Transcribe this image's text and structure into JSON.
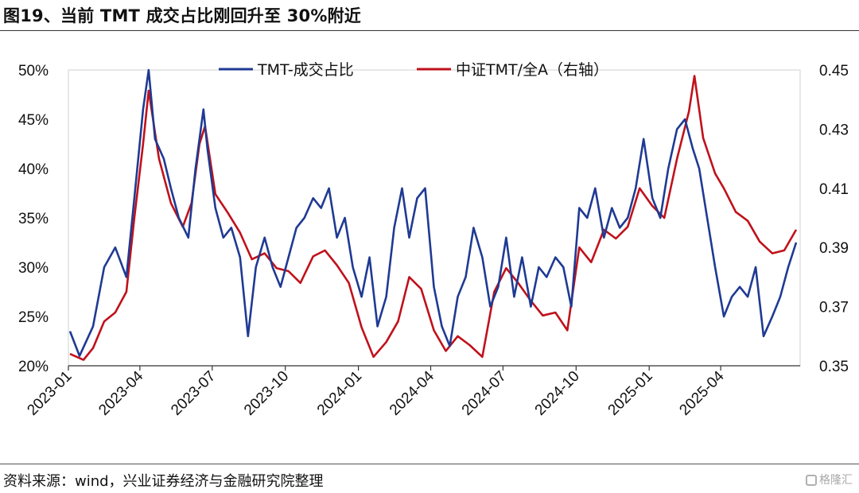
{
  "title": "图19、当前 TMT 成交占比刚回升至 30%附近",
  "source": "资料来源：wind，兴业证券经济与金融研究院整理",
  "watermark": "格隆汇",
  "colors": {
    "tmt_share": "#1f3a93",
    "tmt_ratio": "#c0111b"
  },
  "chart_data": {
    "type": "line",
    "x_ticks": [
      "2023-01",
      "2023-04",
      "2023-07",
      "2023-10",
      "2024-01",
      "2024-04",
      "2024-07",
      "2024-10",
      "2025-01",
      "2025-04"
    ],
    "x_range": [
      "2023-01-01",
      "2025-07-10"
    ],
    "y_left": {
      "ticks": [
        "50%",
        "45%",
        "40%",
        "35%",
        "30%",
        "25%",
        "20%"
      ],
      "range": [
        20,
        50
      ]
    },
    "y_right": {
      "ticks": [
        "0.45",
        "0.43",
        "0.41",
        "0.39",
        "0.37",
        "0.35"
      ],
      "range": [
        0.35,
        0.45
      ]
    },
    "grid": false,
    "legend_placement": "top-center",
    "series": [
      {
        "name": "TMT-成交占比",
        "axis": "left",
        "points": [
          [
            "2023-01-03",
            23.5
          ],
          [
            "2023-01-15",
            21
          ],
          [
            "2023-02-01",
            24
          ],
          [
            "2023-02-15",
            30
          ],
          [
            "2023-03-01",
            32
          ],
          [
            "2023-03-15",
            29
          ],
          [
            "2023-03-25",
            37
          ],
          [
            "2023-04-05",
            46
          ],
          [
            "2023-04-12",
            50
          ],
          [
            "2023-04-20",
            43
          ],
          [
            "2023-05-01",
            41
          ],
          [
            "2023-05-10",
            38
          ],
          [
            "2023-05-20",
            35
          ],
          [
            "2023-06-01",
            33
          ],
          [
            "2023-06-10",
            40
          ],
          [
            "2023-06-20",
            46
          ],
          [
            "2023-06-25",
            42
          ],
          [
            "2023-07-05",
            36
          ],
          [
            "2023-07-15",
            33
          ],
          [
            "2023-07-25",
            34
          ],
          [
            "2023-08-05",
            31
          ],
          [
            "2023-08-15",
            23
          ],
          [
            "2023-08-25",
            30
          ],
          [
            "2023-09-05",
            33
          ],
          [
            "2023-09-15",
            30
          ],
          [
            "2023-09-25",
            28
          ],
          [
            "2023-10-05",
            31
          ],
          [
            "2023-10-15",
            34
          ],
          [
            "2023-10-25",
            35
          ],
          [
            "2023-11-05",
            37
          ],
          [
            "2023-11-15",
            36
          ],
          [
            "2023-11-25",
            38
          ],
          [
            "2023-12-05",
            33
          ],
          [
            "2023-12-15",
            35
          ],
          [
            "2023-12-25",
            30
          ],
          [
            "2024-01-05",
            27
          ],
          [
            "2024-01-15",
            31
          ],
          [
            "2024-01-25",
            24
          ],
          [
            "2024-02-05",
            27
          ],
          [
            "2024-02-15",
            34
          ],
          [
            "2024-02-25",
            38
          ],
          [
            "2024-03-05",
            33
          ],
          [
            "2024-03-15",
            37
          ],
          [
            "2024-03-25",
            38
          ],
          [
            "2024-04-05",
            28
          ],
          [
            "2024-04-15",
            24
          ],
          [
            "2024-04-25",
            22
          ],
          [
            "2024-05-05",
            27
          ],
          [
            "2024-05-15",
            29
          ],
          [
            "2024-05-25",
            34
          ],
          [
            "2024-06-05",
            31
          ],
          [
            "2024-06-15",
            26
          ],
          [
            "2024-06-25",
            28
          ],
          [
            "2024-07-05",
            33
          ],
          [
            "2024-07-15",
            27
          ],
          [
            "2024-07-25",
            31
          ],
          [
            "2024-08-05",
            26
          ],
          [
            "2024-08-15",
            30
          ],
          [
            "2024-08-25",
            29
          ],
          [
            "2024-09-05",
            31
          ],
          [
            "2024-09-15",
            30
          ],
          [
            "2024-09-25",
            26
          ],
          [
            "2024-10-05",
            36
          ],
          [
            "2024-10-15",
            35
          ],
          [
            "2024-10-25",
            38
          ],
          [
            "2024-11-05",
            33
          ],
          [
            "2024-11-15",
            36
          ],
          [
            "2024-11-25",
            34
          ],
          [
            "2024-12-05",
            35
          ],
          [
            "2024-12-15",
            38
          ],
          [
            "2024-12-25",
            43
          ],
          [
            "2025-01-05",
            37
          ],
          [
            "2025-01-15",
            35
          ],
          [
            "2025-01-25",
            40
          ],
          [
            "2025-02-05",
            44
          ],
          [
            "2025-02-15",
            45
          ],
          [
            "2025-02-25",
            42
          ],
          [
            "2025-03-05",
            40
          ],
          [
            "2025-03-15",
            35
          ],
          [
            "2025-03-25",
            30
          ],
          [
            "2025-04-05",
            25
          ],
          [
            "2025-04-15",
            27
          ],
          [
            "2025-04-25",
            28
          ],
          [
            "2025-05-05",
            27
          ],
          [
            "2025-05-15",
            30
          ],
          [
            "2025-05-25",
            23
          ],
          [
            "2025-06-05",
            25
          ],
          [
            "2025-06-15",
            27
          ],
          [
            "2025-06-25",
            30
          ],
          [
            "2025-07-05",
            32.5
          ]
        ]
      },
      {
        "name": "中证TMT/全A（右轴）",
        "axis": "right",
        "points": [
          [
            "2023-01-03",
            0.354
          ],
          [
            "2023-01-20",
            0.352
          ],
          [
            "2023-02-01",
            0.356
          ],
          [
            "2023-02-15",
            0.365
          ],
          [
            "2023-03-01",
            0.368
          ],
          [
            "2023-03-15",
            0.375
          ],
          [
            "2023-03-25",
            0.4
          ],
          [
            "2023-04-05",
            0.425
          ],
          [
            "2023-04-12",
            0.443
          ],
          [
            "2023-04-25",
            0.42
          ],
          [
            "2023-05-10",
            0.405
          ],
          [
            "2023-05-25",
            0.397
          ],
          [
            "2023-06-05",
            0.405
          ],
          [
            "2023-06-15",
            0.425
          ],
          [
            "2023-06-22",
            0.431
          ],
          [
            "2023-07-05",
            0.408
          ],
          [
            "2023-07-20",
            0.402
          ],
          [
            "2023-08-05",
            0.395
          ],
          [
            "2023-08-20",
            0.386
          ],
          [
            "2023-09-05",
            0.388
          ],
          [
            "2023-09-20",
            0.383
          ],
          [
            "2023-10-05",
            0.382
          ],
          [
            "2023-10-20",
            0.378
          ],
          [
            "2023-11-05",
            0.387
          ],
          [
            "2023-11-20",
            0.389
          ],
          [
            "2023-12-05",
            0.384
          ],
          [
            "2023-12-20",
            0.378
          ],
          [
            "2024-01-05",
            0.363
          ],
          [
            "2024-01-20",
            0.353
          ],
          [
            "2024-02-05",
            0.358
          ],
          [
            "2024-02-20",
            0.365
          ],
          [
            "2024-03-05",
            0.38
          ],
          [
            "2024-03-20",
            0.376
          ],
          [
            "2024-04-05",
            0.362
          ],
          [
            "2024-04-20",
            0.355
          ],
          [
            "2024-05-05",
            0.36
          ],
          [
            "2024-05-20",
            0.357
          ],
          [
            "2024-06-05",
            0.353
          ],
          [
            "2024-06-20",
            0.375
          ],
          [
            "2024-07-05",
            0.383
          ],
          [
            "2024-07-20",
            0.378
          ],
          [
            "2024-08-05",
            0.372
          ],
          [
            "2024-08-20",
            0.367
          ],
          [
            "2024-09-05",
            0.368
          ],
          [
            "2024-09-20",
            0.362
          ],
          [
            "2024-10-05",
            0.39
          ],
          [
            "2024-10-20",
            0.385
          ],
          [
            "2024-11-05",
            0.396
          ],
          [
            "2024-11-20",
            0.393
          ],
          [
            "2024-12-05",
            0.397
          ],
          [
            "2024-12-20",
            0.41
          ],
          [
            "2025-01-05",
            0.404
          ],
          [
            "2025-01-20",
            0.4
          ],
          [
            "2025-02-05",
            0.42
          ],
          [
            "2025-02-20",
            0.436
          ],
          [
            "2025-02-27",
            0.448
          ],
          [
            "2025-03-10",
            0.427
          ],
          [
            "2025-03-25",
            0.415
          ],
          [
            "2025-04-05",
            0.41
          ],
          [
            "2025-04-20",
            0.402
          ],
          [
            "2025-05-05",
            0.399
          ],
          [
            "2025-05-20",
            0.392
          ],
          [
            "2025-06-05",
            0.388
          ],
          [
            "2025-06-20",
            0.389
          ],
          [
            "2025-07-05",
            0.396
          ]
        ]
      }
    ]
  }
}
